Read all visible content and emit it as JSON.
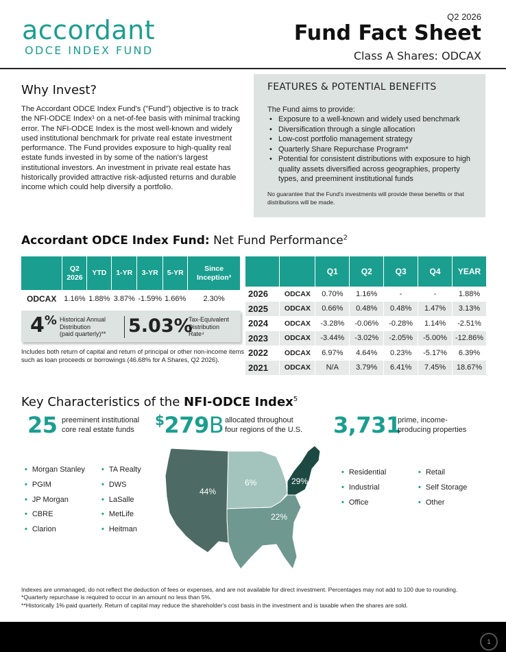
{
  "header": {
    "logo_name": "accordant",
    "logo_sub": "ODCE INDEX FUND",
    "quarter": "Q2 2026",
    "title": "Fund Fact Sheet",
    "class_line": "Class A Shares: ODCAX"
  },
  "why": {
    "title": "Why Invest?",
    "body": "The Accordant ODCE Index Fund's (\"Fund\") objective is to track the NFI-ODCE Index¹ on a net-of-fee basis with minimal tracking error. The NFI-ODCE Index is the most well-known and widely used institutional benchmark for private real estate investment performance. The Fund provides exposure to high-quality real estate funds invested in by some of the nation's largest institutional investors. An investment in private real estate has historically provided attractive risk-adjusted returns and durable income which could help diversify a portfolio."
  },
  "features": {
    "title": "FEATURES & POTENTIAL BENEFITS",
    "intro": "The Fund aims to provide:",
    "items": [
      "Exposure to a well-known and widely used benchmark",
      "Diversification through a single allocation",
      "Low-cost portfolio management strategy",
      "Quarterly Share Repurchase Program*",
      "Potential for consistent distributions with exposure to high quality assets diversified across geographies, property types, and preeminent institutional funds"
    ],
    "disclaimer": "No guarantee that the Fund's investments will provide these benefits or that distributions will be made."
  },
  "performance": {
    "title_bold": "Accordant ODCE Index Fund:",
    "title_rest": " Net Fund Performance",
    "title_sup": "2",
    "summary_headers": [
      "",
      "Q2 2026",
      "YTD",
      "1-YR",
      "3-YR",
      "5-YR",
      "Since Inception³"
    ],
    "summary_row": [
      "ODCAX",
      "1.16%",
      "1.88%",
      "3.87%",
      "-1.59%",
      "1.66%",
      "2.30%"
    ],
    "quarterly_headers": [
      "",
      "",
      "Q1",
      "Q2",
      "Q3",
      "Q4",
      "YEAR"
    ],
    "quarterly_rows": [
      [
        "2026",
        "ODCAX",
        "0.70%",
        "1.16%",
        "-",
        "-",
        "1.88%"
      ],
      [
        "2025",
        "ODCAX",
        "0.66%",
        "0.48%",
        "0.48%",
        "1.47%",
        "3.13%"
      ],
      [
        "2024",
        "ODCAX",
        "-3.28%",
        "-0.06%",
        "-0.28%",
        "1.14%",
        "-2.51%"
      ],
      [
        "2023",
        "ODCAX",
        "-3.44%",
        "-3.02%",
        "-2.05%",
        "-5.00%",
        "-12.86%"
      ],
      [
        "2022",
        "ODCAX",
        "6.97%",
        "4.64%",
        "0.23%",
        "-5.17%",
        "6.39%"
      ],
      [
        "2021",
        "ODCAX",
        "N/A",
        "3.79%",
        "6.41%",
        "7.45%",
        "18.67%"
      ]
    ]
  },
  "distribution": {
    "hist_value": "4",
    "hist_pct": "%",
    "hist_label_1": "Historical Annual",
    "hist_label_2": "Distribution",
    "hist_label_3": "(paid quarterly)**",
    "tax_value": "5.03%",
    "tax_label_1": "Tax-Equivalent",
    "tax_label_2": "Distribution",
    "tax_label_3": "Rate⁴",
    "note": "Includes both return of capital and return of principal or other non-income items such as loan proceeds or borrowings (46.68% for A Shares, Q2 2026)."
  },
  "key": {
    "title_plain": "Key Characteristics of the ",
    "title_bold": "NFI-ODCE Index",
    "title_sup": "5",
    "stat1_value": "25",
    "stat1_label_1": "preeminent institutional",
    "stat1_label_2": "core real estate funds",
    "stat2_dollar": "$",
    "stat2_value": "279",
    "stat2_unit": "B",
    "stat2_label_1": "allocated throughout",
    "stat2_label_2": "four regions of the U.S.",
    "stat3_value": "3,731",
    "stat3_label_1": "prime, income-",
    "stat3_label_2": "producing properties",
    "managers_col1": [
      "Morgan Stanley",
      "PGIM",
      "JP Morgan",
      "CBRE",
      "Clarion"
    ],
    "managers_col2": [
      "TA Realty",
      "DWS",
      "LaSalle",
      "MetLife",
      "Heitman"
    ],
    "property_col1": [
      "Residential",
      "Industrial",
      "Office"
    ],
    "property_col2": [
      "Retail",
      "Self Storage",
      "Other"
    ],
    "regions": [
      {
        "name": "West",
        "pct": "44%",
        "color": "#4d6b64"
      },
      {
        "name": "Midwest",
        "pct": "6%",
        "color": "#a3c4bd"
      },
      {
        "name": "East",
        "pct": "29%",
        "color": "#1c4a42"
      },
      {
        "name": "South",
        "pct": "22%",
        "color": "#6f9890"
      }
    ]
  },
  "footer": {
    "line1": "Indexes are unmanaged, do not reflect the deduction of fees or expenses, and are not available for direct investment. Percentages may not add to 100 due to rounding.",
    "line2": "*Quarterly repurchase is required to occur in an amount no less than 5%.",
    "line3": "**Historically 1% paid quarterly. Return of capital may reduce the shareholder's cost basis in the investment and is taxable when the shares are sold.",
    "page": "1"
  }
}
